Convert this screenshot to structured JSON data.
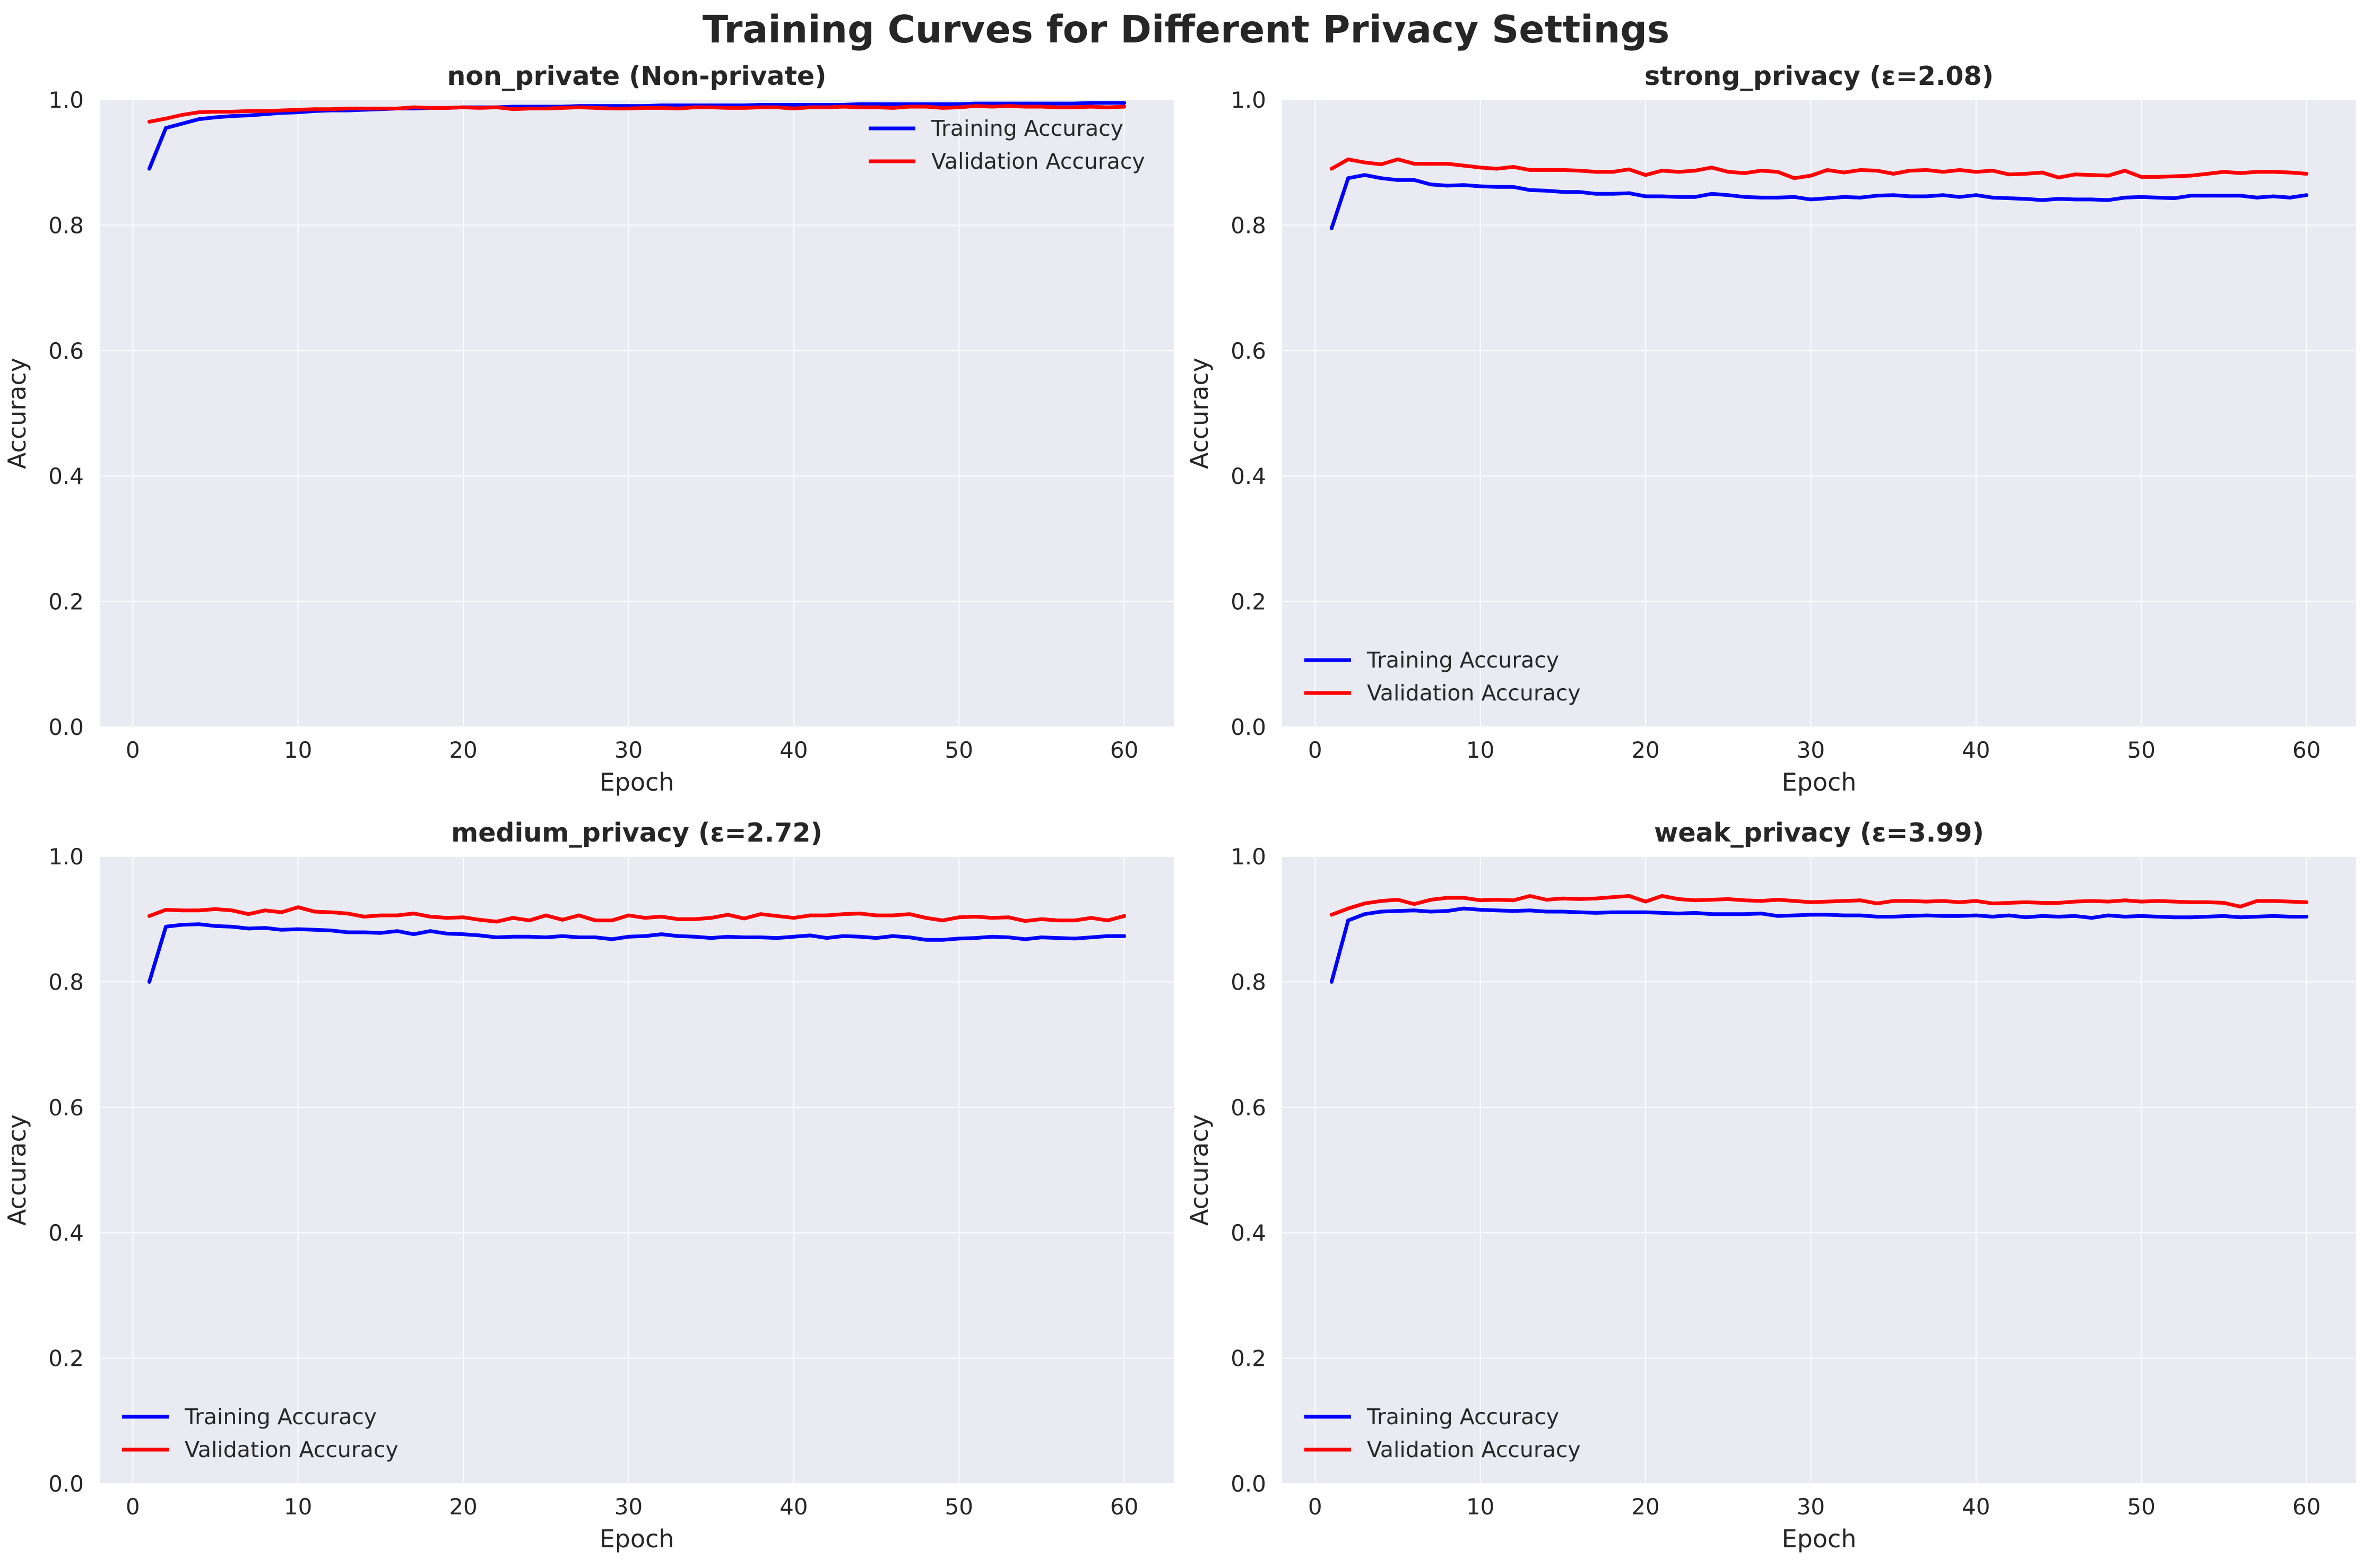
{
  "figure": {
    "title": "Training Curves for Different Privacy Settings"
  },
  "colors": {
    "training": "#0000ff",
    "validation": "#ff0000",
    "axes_bg": "#eaeaf2",
    "grid": "#ffffff",
    "text": "#262626"
  },
  "chart_data": [
    {
      "type": "line",
      "title": "non_private (Non-private)",
      "xlabel": "Epoch",
      "ylabel": "Accuracy",
      "xlim": [
        -2,
        63
      ],
      "ylim": [
        0,
        1
      ],
      "xticks": [
        0,
        10,
        20,
        30,
        40,
        50,
        60
      ],
      "yticks": [
        0.0,
        0.2,
        0.4,
        0.6,
        0.8,
        1.0
      ],
      "grid": true,
      "legend_position": "upper-right",
      "x": [
        1,
        2,
        3,
        4,
        5,
        6,
        7,
        8,
        9,
        10,
        11,
        12,
        13,
        14,
        15,
        16,
        17,
        18,
        19,
        20,
        21,
        22,
        23,
        24,
        25,
        26,
        27,
        28,
        29,
        30,
        31,
        32,
        33,
        34,
        35,
        36,
        37,
        38,
        39,
        40,
        41,
        42,
        43,
        44,
        45,
        46,
        47,
        48,
        49,
        50,
        51,
        52,
        53,
        54,
        55,
        56,
        57,
        58,
        59,
        60
      ],
      "series": [
        {
          "name": "Training Accuracy",
          "color": "#0000ff",
          "values": [
            0.89,
            0.955,
            0.962,
            0.969,
            0.972,
            0.974,
            0.975,
            0.977,
            0.979,
            0.98,
            0.982,
            0.983,
            0.983,
            0.984,
            0.985,
            0.986,
            0.986,
            0.987,
            0.987,
            0.988,
            0.988,
            0.988,
            0.989,
            0.989,
            0.989,
            0.989,
            0.99,
            0.99,
            0.99,
            0.99,
            0.99,
            0.991,
            0.991,
            0.991,
            0.991,
            0.991,
            0.991,
            0.992,
            0.992,
            0.992,
            0.992,
            0.992,
            0.992,
            0.993,
            0.993,
            0.993,
            0.993,
            0.993,
            0.993,
            0.993,
            0.994,
            0.994,
            0.994,
            0.994,
            0.994,
            0.994,
            0.994,
            0.995,
            0.995,
            0.995
          ]
        },
        {
          "name": "Validation Accuracy",
          "color": "#ff0000",
          "values": [
            0.965,
            0.97,
            0.976,
            0.98,
            0.981,
            0.981,
            0.982,
            0.982,
            0.983,
            0.984,
            0.985,
            0.985,
            0.986,
            0.986,
            0.986,
            0.986,
            0.988,
            0.987,
            0.987,
            0.988,
            0.987,
            0.988,
            0.985,
            0.986,
            0.986,
            0.987,
            0.988,
            0.987,
            0.986,
            0.986,
            0.987,
            0.987,
            0.986,
            0.988,
            0.988,
            0.987,
            0.987,
            0.988,
            0.988,
            0.986,
            0.988,
            0.988,
            0.989,
            0.988,
            0.988,
            0.987,
            0.989,
            0.989,
            0.987,
            0.988,
            0.99,
            0.989,
            0.99,
            0.989,
            0.989,
            0.988,
            0.988,
            0.989,
            0.988,
            0.989
          ]
        }
      ]
    },
    {
      "type": "line",
      "title": "strong_privacy (ε=2.08)",
      "xlabel": "Epoch",
      "ylabel": "Accuracy",
      "xlim": [
        -2,
        63
      ],
      "ylim": [
        0,
        1
      ],
      "xticks": [
        0,
        10,
        20,
        30,
        40,
        50,
        60
      ],
      "yticks": [
        0.0,
        0.2,
        0.4,
        0.6,
        0.8,
        1.0
      ],
      "grid": true,
      "legend_position": "lower-left",
      "x": [
        1,
        2,
        3,
        4,
        5,
        6,
        7,
        8,
        9,
        10,
        11,
        12,
        13,
        14,
        15,
        16,
        17,
        18,
        19,
        20,
        21,
        22,
        23,
        24,
        25,
        26,
        27,
        28,
        29,
        30,
        31,
        32,
        33,
        34,
        35,
        36,
        37,
        38,
        39,
        40,
        41,
        42,
        43,
        44,
        45,
        46,
        47,
        48,
        49,
        50,
        51,
        52,
        53,
        54,
        55,
        56,
        57,
        58,
        59,
        60
      ],
      "series": [
        {
          "name": "Training Accuracy",
          "color": "#0000ff",
          "values": [
            0.795,
            0.875,
            0.88,
            0.875,
            0.872,
            0.872,
            0.865,
            0.863,
            0.864,
            0.862,
            0.861,
            0.861,
            0.856,
            0.855,
            0.853,
            0.853,
            0.85,
            0.85,
            0.851,
            0.846,
            0.846,
            0.845,
            0.845,
            0.85,
            0.848,
            0.845,
            0.844,
            0.844,
            0.845,
            0.841,
            0.843,
            0.845,
            0.844,
            0.847,
            0.848,
            0.846,
            0.846,
            0.848,
            0.845,
            0.848,
            0.844,
            0.843,
            0.842,
            0.84,
            0.842,
            0.841,
            0.841,
            0.84,
            0.844,
            0.845,
            0.844,
            0.843,
            0.847,
            0.847,
            0.847,
            0.847,
            0.844,
            0.846,
            0.844,
            0.848
          ]
        },
        {
          "name": "Validation Accuracy",
          "color": "#ff0000",
          "values": [
            0.89,
            0.905,
            0.9,
            0.897,
            0.905,
            0.898,
            0.898,
            0.898,
            0.895,
            0.892,
            0.89,
            0.893,
            0.888,
            0.888,
            0.888,
            0.887,
            0.885,
            0.885,
            0.889,
            0.88,
            0.887,
            0.885,
            0.887,
            0.892,
            0.885,
            0.883,
            0.887,
            0.885,
            0.875,
            0.879,
            0.888,
            0.884,
            0.888,
            0.887,
            0.882,
            0.887,
            0.888,
            0.885,
            0.888,
            0.885,
            0.887,
            0.881,
            0.882,
            0.884,
            0.876,
            0.881,
            0.88,
            0.879,
            0.887,
            0.877,
            0.877,
            0.878,
            0.879,
            0.882,
            0.885,
            0.883,
            0.885,
            0.885,
            0.884,
            0.882
          ]
        }
      ]
    },
    {
      "type": "line",
      "title": "medium_privacy (ε=2.72)",
      "xlabel": "Epoch",
      "ylabel": "Accuracy",
      "xlim": [
        -2,
        63
      ],
      "ylim": [
        0,
        1
      ],
      "xticks": [
        0,
        10,
        20,
        30,
        40,
        50,
        60
      ],
      "yticks": [
        0.0,
        0.2,
        0.4,
        0.6,
        0.8,
        1.0
      ],
      "grid": true,
      "legend_position": "lower-left",
      "x": [
        1,
        2,
        3,
        4,
        5,
        6,
        7,
        8,
        9,
        10,
        11,
        12,
        13,
        14,
        15,
        16,
        17,
        18,
        19,
        20,
        21,
        22,
        23,
        24,
        25,
        26,
        27,
        28,
        29,
        30,
        31,
        32,
        33,
        34,
        35,
        36,
        37,
        38,
        39,
        40,
        41,
        42,
        43,
        44,
        45,
        46,
        47,
        48,
        49,
        50,
        51,
        52,
        53,
        54,
        55,
        56,
        57,
        58,
        59,
        60
      ],
      "series": [
        {
          "name": "Training Accuracy",
          "color": "#0000ff",
          "values": [
            0.8,
            0.888,
            0.891,
            0.892,
            0.889,
            0.888,
            0.885,
            0.886,
            0.883,
            0.884,
            0.883,
            0.882,
            0.879,
            0.879,
            0.878,
            0.881,
            0.876,
            0.881,
            0.877,
            0.876,
            0.874,
            0.871,
            0.872,
            0.872,
            0.871,
            0.873,
            0.871,
            0.871,
            0.868,
            0.872,
            0.873,
            0.876,
            0.873,
            0.872,
            0.87,
            0.872,
            0.871,
            0.871,
            0.87,
            0.872,
            0.874,
            0.87,
            0.873,
            0.872,
            0.87,
            0.873,
            0.871,
            0.867,
            0.867,
            0.869,
            0.87,
            0.872,
            0.871,
            0.868,
            0.871,
            0.87,
            0.869,
            0.871,
            0.873,
            0.873
          ]
        },
        {
          "name": "Validation Accuracy",
          "color": "#ff0000",
          "values": [
            0.905,
            0.915,
            0.914,
            0.914,
            0.916,
            0.914,
            0.908,
            0.914,
            0.911,
            0.919,
            0.912,
            0.911,
            0.909,
            0.904,
            0.906,
            0.906,
            0.909,
            0.904,
            0.902,
            0.903,
            0.899,
            0.896,
            0.902,
            0.898,
            0.906,
            0.899,
            0.906,
            0.898,
            0.898,
            0.906,
            0.902,
            0.904,
            0.9,
            0.9,
            0.902,
            0.907,
            0.901,
            0.908,
            0.905,
            0.902,
            0.906,
            0.906,
            0.908,
            0.909,
            0.906,
            0.906,
            0.908,
            0.902,
            0.898,
            0.903,
            0.904,
            0.902,
            0.903,
            0.897,
            0.9,
            0.898,
            0.898,
            0.902,
            0.898,
            0.905
          ]
        }
      ]
    },
    {
      "type": "line",
      "title": "weak_privacy (ε=3.99)",
      "xlabel": "Epoch",
      "ylabel": "Accuracy",
      "xlim": [
        -2,
        63
      ],
      "ylim": [
        0,
        1
      ],
      "xticks": [
        0,
        10,
        20,
        30,
        40,
        50,
        60
      ],
      "yticks": [
        0.0,
        0.2,
        0.4,
        0.6,
        0.8,
        1.0
      ],
      "grid": true,
      "legend_position": "lower-left",
      "x": [
        1,
        2,
        3,
        4,
        5,
        6,
        7,
        8,
        9,
        10,
        11,
        12,
        13,
        14,
        15,
        16,
        17,
        18,
        19,
        20,
        21,
        22,
        23,
        24,
        25,
        26,
        27,
        28,
        29,
        30,
        31,
        32,
        33,
        34,
        35,
        36,
        37,
        38,
        39,
        40,
        41,
        42,
        43,
        44,
        45,
        46,
        47,
        48,
        49,
        50,
        51,
        52,
        53,
        54,
        55,
        56,
        57,
        58,
        59,
        60
      ],
      "series": [
        {
          "name": "Training Accuracy",
          "color": "#0000ff",
          "values": [
            0.8,
            0.898,
            0.908,
            0.912,
            0.913,
            0.914,
            0.912,
            0.913,
            0.917,
            0.915,
            0.914,
            0.913,
            0.914,
            0.912,
            0.912,
            0.911,
            0.91,
            0.911,
            0.911,
            0.911,
            0.91,
            0.909,
            0.91,
            0.908,
            0.908,
            0.908,
            0.909,
            0.905,
            0.906,
            0.907,
            0.907,
            0.906,
            0.906,
            0.904,
            0.904,
            0.905,
            0.906,
            0.905,
            0.905,
            0.906,
            0.904,
            0.906,
            0.903,
            0.905,
            0.904,
            0.905,
            0.902,
            0.906,
            0.904,
            0.905,
            0.904,
            0.903,
            0.903,
            0.904,
            0.905,
            0.903,
            0.904,
            0.905,
            0.904,
            0.904
          ]
        },
        {
          "name": "Validation Accuracy",
          "color": "#ff0000",
          "values": [
            0.907,
            0.917,
            0.925,
            0.929,
            0.931,
            0.924,
            0.931,
            0.934,
            0.934,
            0.93,
            0.931,
            0.93,
            0.937,
            0.931,
            0.933,
            0.932,
            0.933,
            0.935,
            0.937,
            0.928,
            0.937,
            0.932,
            0.93,
            0.931,
            0.932,
            0.93,
            0.929,
            0.931,
            0.929,
            0.927,
            0.928,
            0.929,
            0.93,
            0.925,
            0.929,
            0.929,
            0.928,
            0.929,
            0.927,
            0.929,
            0.925,
            0.926,
            0.927,
            0.926,
            0.926,
            0.928,
            0.929,
            0.928,
            0.93,
            0.928,
            0.929,
            0.928,
            0.927,
            0.927,
            0.926,
            0.92,
            0.929,
            0.929,
            0.928,
            0.927
          ]
        }
      ]
    }
  ]
}
